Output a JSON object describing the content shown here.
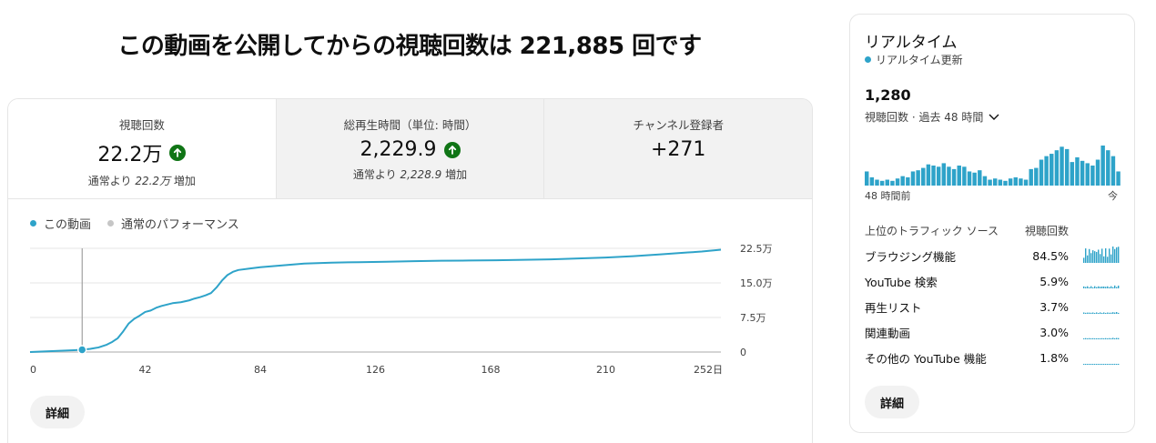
{
  "headline": "この動画を公開してからの視聴回数は 221,885 回です",
  "colors": {
    "accent": "#2ea3c9",
    "positive": "#107516",
    "grey_dot": "#c6c6c6"
  },
  "tabs": [
    {
      "label": "視聴回数",
      "value": "22.2万",
      "trend_icon": "arrow-up-icon",
      "sub_prefix": "通常より ",
      "sub_value": "22.2万",
      "sub_suffix": " 増加"
    },
    {
      "label": "総再生時間（単位: 時間）",
      "value": "2,229.9",
      "trend_icon": "arrow-up-icon",
      "sub_prefix": "通常より ",
      "sub_value": "2,228.9",
      "sub_suffix": " 増加"
    },
    {
      "label": "チャンネル登録者",
      "value": "+271"
    }
  ],
  "legend": {
    "this_video": "この動画",
    "typical": "通常のパフォーマンス"
  },
  "details_button": "詳細",
  "chart_data": {
    "type": "line",
    "x_unit": "日",
    "x_ticks": [
      "0",
      "42",
      "84",
      "126",
      "168",
      "210",
      "252日"
    ],
    "y_ticks": [
      "0",
      "7.5万",
      "15.0万",
      "22.5万"
    ],
    "xlim": [
      0,
      252
    ],
    "ylim": [
      0,
      225000
    ],
    "series": [
      {
        "name": "この動画",
        "x": [
          0,
          4,
          8,
          12,
          16,
          19,
          22,
          25,
          28,
          30,
          32,
          34,
          36,
          38,
          40,
          42,
          44,
          46,
          48,
          50,
          52,
          55,
          58,
          60,
          62,
          64,
          66,
          68,
          70,
          72,
          74,
          76,
          80,
          84,
          88,
          92,
          96,
          100,
          105,
          110,
          120,
          130,
          140,
          150,
          160,
          170,
          180,
          190,
          200,
          210,
          220,
          230,
          240,
          245,
          252
        ],
        "y": [
          0,
          1000,
          2000,
          3000,
          4000,
          5000,
          7000,
          10000,
          16000,
          22000,
          30000,
          45000,
          62000,
          72000,
          79000,
          87000,
          90000,
          96000,
          100000,
          103000,
          106000,
          108000,
          112000,
          116000,
          119000,
          123000,
          128000,
          140000,
          155000,
          167000,
          174000,
          178000,
          181000,
          184000,
          186000,
          188000,
          190000,
          192000,
          193000,
          194000,
          195000,
          196000,
          197000,
          198000,
          198500,
          199000,
          200000,
          201000,
          203000,
          205000,
          208000,
          212000,
          216000,
          218000,
          222000
        ]
      },
      {
        "name": "通常のパフォーマンス",
        "x": [
          0,
          252
        ],
        "y": [
          0,
          0
        ]
      }
    ],
    "cursor": {
      "x": 19,
      "y": 5000
    }
  },
  "realtime": {
    "title": "リアルタイム",
    "live_label": "リアルタイム更新",
    "count": "1,280",
    "period": "視聴回数 · 過去 48 時間",
    "left_label": "48 時間前",
    "right_label": "今",
    "bars": [
      12,
      7,
      5,
      4,
      5,
      4,
      6,
      8,
      7,
      12,
      13,
      15,
      18,
      17,
      16,
      19,
      16,
      14,
      17,
      16,
      12,
      11,
      13,
      8,
      5,
      6,
      5,
      4,
      6,
      7,
      6,
      5,
      14,
      15,
      22,
      25,
      27,
      30,
      33,
      31,
      20,
      24,
      21,
      19,
      17,
      22,
      34,
      30,
      25,
      12
    ]
  },
  "traffic": {
    "header_source": "上位のトラフィック ソース",
    "header_views": "視聴回数",
    "rows": [
      {
        "name": "ブラウジング機能",
        "pct": "84.5%",
        "level": 1.0
      },
      {
        "name": "YouTube 検索",
        "pct": "5.9%",
        "level": 0.15
      },
      {
        "name": "再生リスト",
        "pct": "3.7%",
        "level": 0.1
      },
      {
        "name": "関連動画",
        "pct": "3.0%",
        "level": 0.08
      },
      {
        "name": "その他の YouTube 機能",
        "pct": "1.8%",
        "level": 0.05
      }
    ]
  }
}
